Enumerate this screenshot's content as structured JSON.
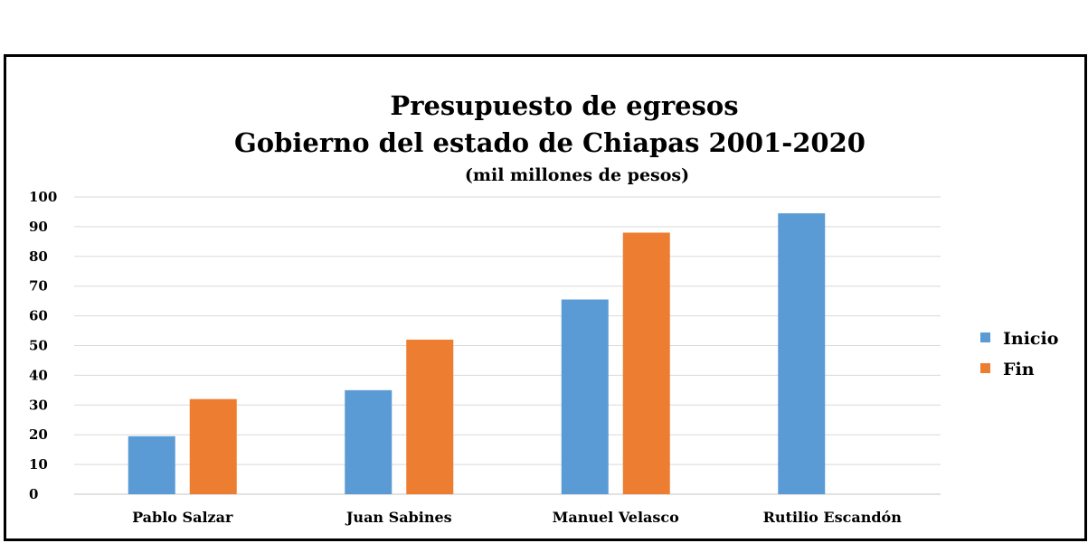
{
  "chart_data": {
    "type": "bar",
    "title": "Presupuesto de egresos",
    "subtitle": "Gobierno del estado de Chiapas 2001-2020",
    "units_note": "(mil millones de pesos)",
    "categories": [
      "Pablo Salzar",
      "Juan Sabines",
      "Manuel Velasco",
      "Rutilio Escandón"
    ],
    "series": [
      {
        "name": "Inicio",
        "color": "#5b9bd5",
        "values": [
          19.5,
          35,
          65.5,
          94.5
        ]
      },
      {
        "name": "Fin",
        "color": "#ed7d31",
        "values": [
          32,
          52,
          88,
          null
        ]
      }
    ],
    "ylim": [
      0,
      100
    ],
    "yticks": [
      0,
      10,
      20,
      30,
      40,
      50,
      60,
      70,
      80,
      90,
      100
    ],
    "grid": true,
    "legend_position": "right",
    "gridline_color": "#d9d9d9",
    "axis_color": "#d9d9d9"
  }
}
